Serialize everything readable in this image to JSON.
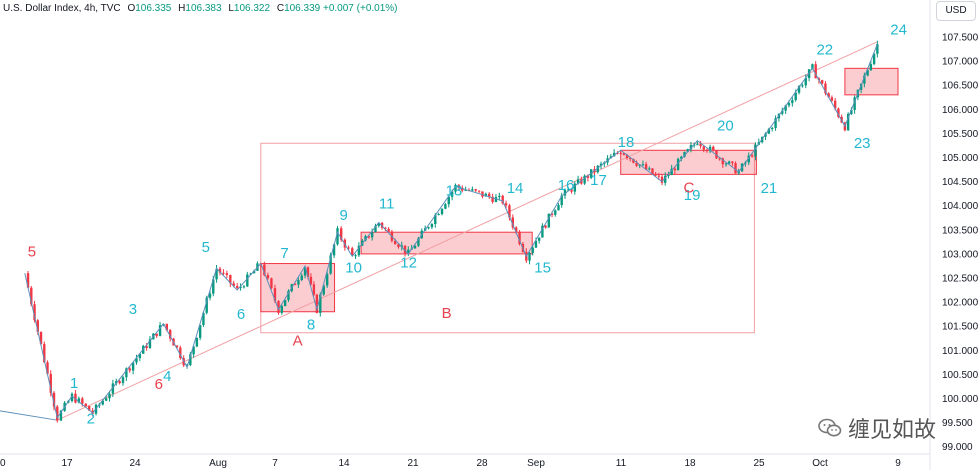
{
  "header": {
    "symbol": "U.S. Dollar Index, 4h, TVC",
    "open_label": "O",
    "open": "106.335",
    "high_label": "H",
    "high": "106.383",
    "low_label": "L",
    "low": "106.322",
    "close_label": "C",
    "close": "106.339",
    "change": "+0.007 (+0.01%)"
  },
  "currency_button": "USD",
  "watermark": "缠见如故",
  "colors": {
    "up": "#089981",
    "down": "#f23645",
    "wave_line": "#5b8fb9",
    "trend_line": "#f0a0a4",
    "box_fill": "rgba(242,54,69,0.25)",
    "box_border": "#f23645",
    "cyan": "#22b8cf",
    "red_label": "#e8414f"
  },
  "chart_data": {
    "type": "candlestick",
    "title": "U.S. Dollar Index, 4h, TVC",
    "ylim": [
      99.0,
      108.0
    ],
    "y_ticks": [
      "107.500",
      "107.000",
      "106.500",
      "106.000",
      "105.500",
      "105.000",
      "104.500",
      "104.000",
      "103.500",
      "103.000",
      "102.500",
      "102.000",
      "101.500",
      "101.000",
      "100.500",
      "100.000",
      "99.500",
      "99.000"
    ],
    "x_ticks": [
      "0",
      "17",
      "24",
      "Aug",
      "7",
      "14",
      "21",
      "28",
      "Sep",
      "11",
      "18",
      "25",
      "Oct",
      "9"
    ],
    "wave_points": [
      {
        "label": "1",
        "x": 2.0,
        "y": 100.05
      },
      {
        "label": "2",
        "x": 2.7,
        "y": 99.85
      },
      {
        "label": "3",
        "x": 4.4,
        "y": 101.55
      },
      {
        "label": "4",
        "x": 5.7,
        "y": 100.65
      },
      {
        "label": "5",
        "x": 6.8,
        "y": 102.75
      },
      {
        "label": "6",
        "x": 8.2,
        "y": 101.9
      },
      {
        "label": "7",
        "x": 9.2,
        "y": 102.75
      },
      {
        "label": "8",
        "x": 10.3,
        "y": 101.85
      },
      {
        "label": "9",
        "x": 11.0,
        "y": 103.5
      },
      {
        "label": "10",
        "x": 11.4,
        "y": 102.95
      },
      {
        "label": "11",
        "x": 12.2,
        "y": 103.65
      },
      {
        "label": "12",
        "x": 13.4,
        "y": 103.05
      },
      {
        "label": "13",
        "x": 14.8,
        "y": 104.0
      },
      {
        "label": "14",
        "x": 16.6,
        "y": 104.1
      },
      {
        "label": "15",
        "x": 17.4,
        "y": 102.95
      },
      {
        "label": "16",
        "x": 18.6,
        "y": 104.2
      },
      {
        "label": "17",
        "x": 19.7,
        "y": 104.8
      },
      {
        "label": "18",
        "x": 20.7,
        "y": 105.05
      },
      {
        "label": "19",
        "x": 22.4,
        "y": 104.45
      },
      {
        "label": "20",
        "x": 24.0,
        "y": 105.35
      },
      {
        "label": "21",
        "x": 24.8,
        "y": 104.6
      },
      {
        "label": "22",
        "x": 27.1,
        "y": 106.85
      },
      {
        "label": "23",
        "x": 28.3,
        "y": 105.65
      },
      {
        "label": "24",
        "x": 29.4,
        "y": 107.3
      }
    ],
    "extra_labels": [
      {
        "label": "5",
        "color": "red",
        "x": 0.5,
        "y": 102.95
      },
      {
        "label": "6",
        "color": "red",
        "x": 4.8,
        "y": 100.2
      }
    ],
    "boxes": [
      {
        "label": "A",
        "x0": 8.4,
        "x1": 10.9,
        "y0": 101.8,
        "y1": 102.8
      },
      {
        "label": "B",
        "x0": 11.8,
        "x1": 17.6,
        "y0": 103.0,
        "y1": 103.45
      },
      {
        "label": "C",
        "x0": 20.6,
        "x1": 25.2,
        "y0": 104.65,
        "y1": 105.15
      },
      {
        "label": "",
        "x0": 28.2,
        "x1": 30.0,
        "y0": 106.3,
        "y1": 106.85
      }
    ],
    "outline_box": {
      "x0": 8.4,
      "x1": 25.2,
      "y0": 101.8,
      "y1": 105.15
    },
    "trend_lines": [
      {
        "points": [
          [
            -1.0,
            99.8
          ],
          [
            1.5,
            99.55
          ]
        ]
      },
      {
        "points": [
          [
            1.5,
            99.55
          ],
          [
            29.3,
            107.4
          ]
        ]
      }
    ],
    "wave_path": [
      [
        0.4,
        102.6
      ],
      [
        1.5,
        99.6
      ],
      [
        2.0,
        100.05
      ],
      [
        2.7,
        99.7
      ],
      [
        5.1,
        101.55
      ],
      [
        5.9,
        100.65
      ],
      [
        6.9,
        102.7
      ],
      [
        7.6,
        102.25
      ],
      [
        8.4,
        102.8
      ],
      [
        9.0,
        101.85
      ],
      [
        9.9,
        102.75
      ],
      [
        10.3,
        101.85
      ],
      [
        11.0,
        103.45
      ],
      [
        11.5,
        102.95
      ],
      [
        12.4,
        103.65
      ],
      [
        13.4,
        103.0
      ],
      [
        15.0,
        104.4
      ],
      [
        16.6,
        104.1
      ],
      [
        17.4,
        102.95
      ],
      [
        18.6,
        104.2
      ],
      [
        20.6,
        105.15
      ],
      [
        22.0,
        104.5
      ],
      [
        23.2,
        105.35
      ],
      [
        24.6,
        104.7
      ],
      [
        27.1,
        106.85
      ],
      [
        28.2,
        105.65
      ],
      [
        29.3,
        107.35
      ]
    ]
  }
}
